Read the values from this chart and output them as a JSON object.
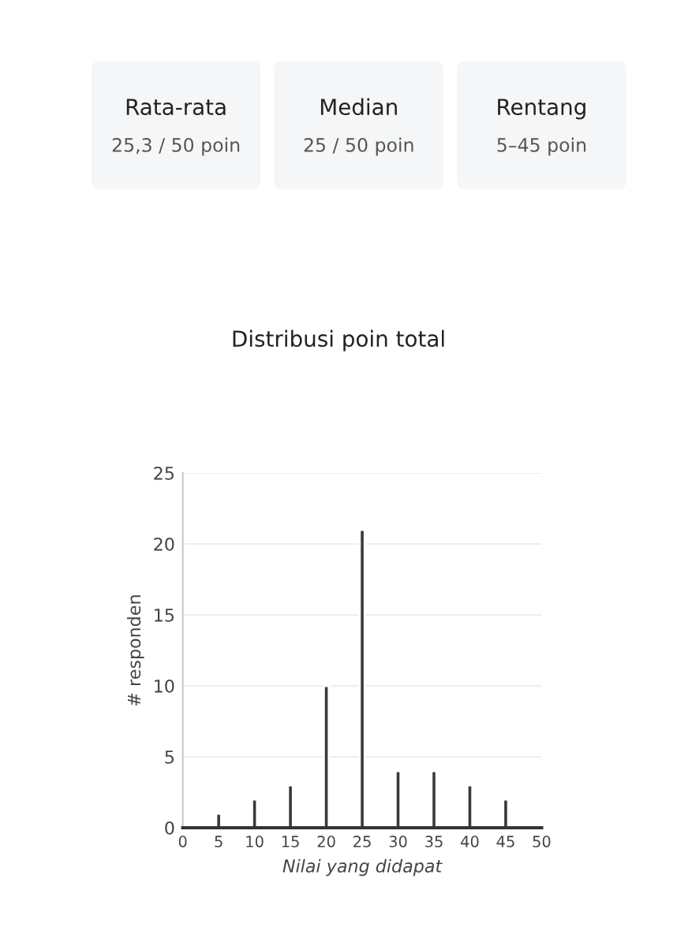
{
  "chart_data": {
    "type": "bar",
    "title": "Distribusi poin total",
    "annotations": [
      "Rata-rata",
      "25,3 / 50 poin",
      "Median",
      "25 / 50 poin",
      "Rentang",
      "5–45 poin"
    ],
    "x": [
      5,
      10,
      15,
      20,
      25,
      30,
      35,
      40,
      45
    ],
    "values": [
      1,
      2,
      3,
      10,
      21,
      4,
      4,
      3,
      2
    ],
    "color": "#3a3a32",
    "xlabel": "Nilai yang didapat",
    "ylabel": "# responden",
    "xlim": [
      0,
      50
    ],
    "xticks": [
      0,
      5,
      10,
      15,
      20,
      25,
      30,
      35,
      40,
      45,
      50
    ],
    "ylim": [
      0,
      25
    ],
    "yticks": [
      0,
      5,
      10,
      15,
      20,
      25
    ],
    "grid": "y"
  }
}
